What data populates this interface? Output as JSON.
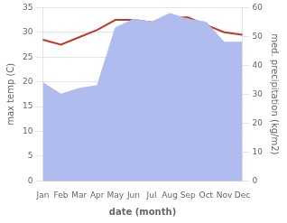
{
  "chart_data": {
    "type": "line",
    "xlabel": "date (month)",
    "ylabel": "max temp (C)",
    "y2label": "med. precipitation (kg/m2)",
    "categories": [
      "Jan",
      "Feb",
      "Mar",
      "Apr",
      "May",
      "Jun",
      "Jul",
      "Aug",
      "Sep",
      "Oct",
      "Nov",
      "Dec"
    ],
    "series": [
      {
        "type": "area",
        "axis": "y2",
        "color": "#b0bcee",
        "values": [
          34,
          30,
          32,
          33,
          53,
          56,
          55,
          58,
          56,
          55,
          48,
          48
        ]
      },
      {
        "type": "line",
        "color": "#c0392b",
        "values": [
          28.5,
          27.5,
          29.0,
          30.5,
          32.5,
          32.5,
          32.0,
          33.0,
          33.0,
          31.5,
          30.0,
          29.5
        ]
      }
    ],
    "ylim": [
      0,
      35
    ],
    "yticks": [
      0,
      5,
      10,
      15,
      20,
      25,
      30,
      35
    ],
    "y2lim": [
      0,
      60
    ],
    "y2ticks": [
      0,
      10,
      20,
      30,
      40,
      50,
      60
    ],
    "grid": true
  }
}
